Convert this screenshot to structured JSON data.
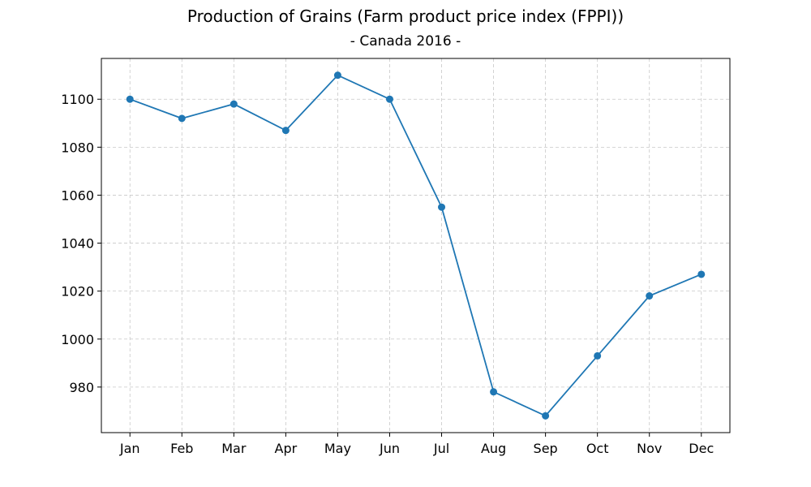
{
  "chart_data": {
    "type": "line",
    "title": "Production of Grains (Farm product price index (FPPI))",
    "subtitle": "- Canada 2016 -",
    "xlabel": "",
    "ylabel": "",
    "categories": [
      "Jan",
      "Feb",
      "Mar",
      "Apr",
      "May",
      "Jun",
      "Jul",
      "Aug",
      "Sep",
      "Oct",
      "Nov",
      "Dec"
    ],
    "series": [
      {
        "values": [
          1100,
          1092,
          1098,
          1087,
          1110,
          1100,
          1055,
          978,
          968,
          993,
          1018,
          1027
        ],
        "color": "#1f77b4"
      }
    ],
    "yticks": [
      980,
      1000,
      1020,
      1040,
      1060,
      1080,
      1100
    ],
    "ylim": [
      961,
      1117
    ],
    "grid": true,
    "legend": "none"
  }
}
